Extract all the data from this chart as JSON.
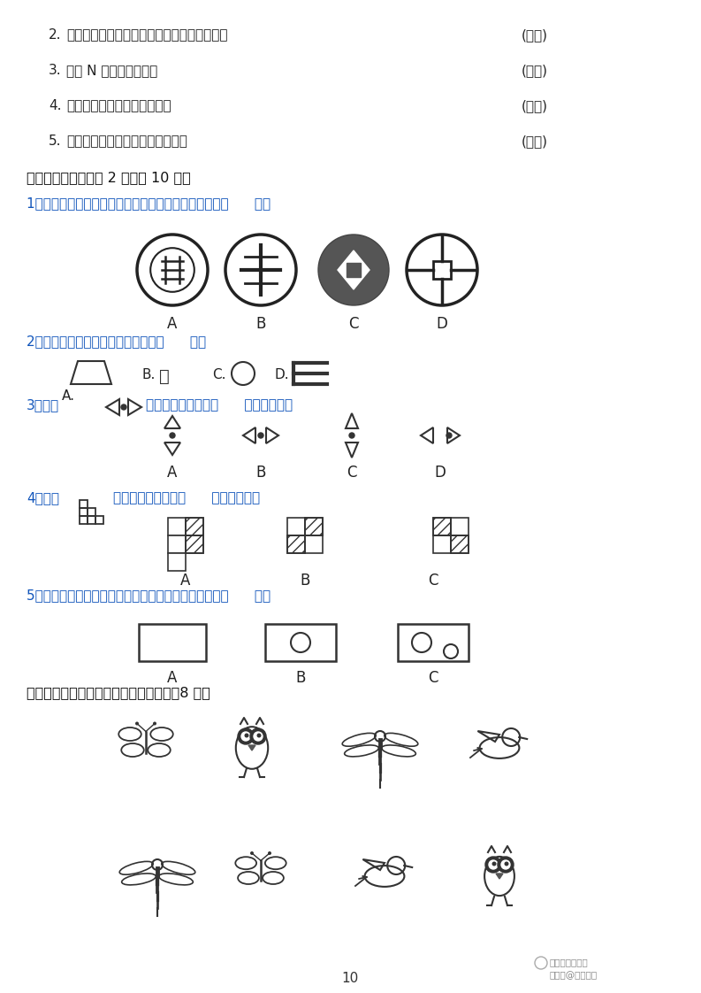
{
  "bg_color": "#ffffff",
  "page_number": "10",
  "true_false_items": [
    {
      "num": "2.",
      "text": "一张纸对折后剪出的图形一定是轴对称图形。",
      "bracket": "(　　)"
    },
    {
      "num": "3.",
      "text": "字母 N 是轴对称图形。",
      "bracket": "(　　)"
    },
    {
      "num": "4.",
      "text": "小朋友玩荡秋千是旋转现象。",
      "bracket": "(　　)"
    },
    {
      "num": "5.",
      "text": "旋转之后图形的形状发生了改变。",
      "bracket": "(　　)"
    }
  ],
  "section4_title": "四、选一选。（每题 2 分，共 10 分）",
  "section5_title": "五、把通过平移能得到的图形连起来。（8 分）",
  "footer_text": "10",
  "watermark1": "中小学满分学苑",
  "watermark2": "搜狐号@财精课评"
}
